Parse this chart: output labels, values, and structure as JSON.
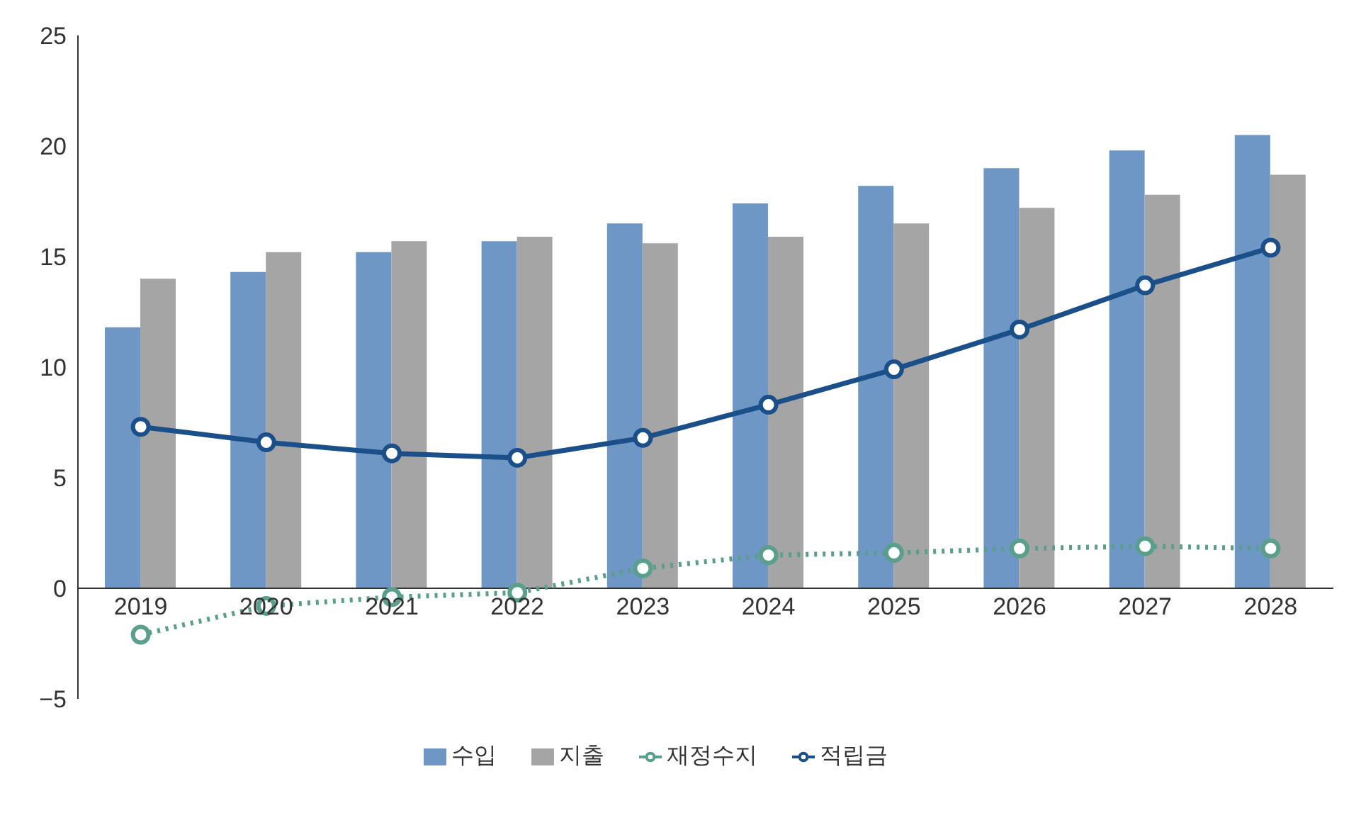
{
  "chart_data": {
    "type": "bar",
    "categories": [
      "2019",
      "2020",
      "2021",
      "2022",
      "2023",
      "2024",
      "2025",
      "2026",
      "2027",
      "2028"
    ],
    "series": [
      {
        "name": "수입",
        "color": "#6f97c6",
        "values": [
          11.8,
          14.3,
          15.2,
          15.7,
          16.5,
          17.4,
          18.2,
          19.0,
          19.8,
          20.5
        ]
      },
      {
        "name": "지출",
        "color": "#a5a5a5",
        "values": [
          14.0,
          15.2,
          15.7,
          15.9,
          15.6,
          15.9,
          16.5,
          17.2,
          17.8,
          18.7
        ]
      },
      {
        "name": "재정수지",
        "type": "line",
        "color": "#5a9e8c",
        "line_style": "dotted",
        "marker": "circle",
        "values": [
          -2.1,
          -0.8,
          -0.4,
          -0.2,
          0.9,
          1.5,
          1.6,
          1.8,
          1.9,
          1.8
        ]
      },
      {
        "name": "적립금",
        "type": "line",
        "color": "#1b4f8a",
        "line_style": "solid",
        "marker": "circle",
        "values": [
          7.3,
          6.6,
          6.1,
          5.9,
          6.8,
          8.3,
          9.9,
          11.7,
          13.7,
          15.4
        ]
      }
    ],
    "ylim": [
      -5,
      25
    ],
    "yticks": [
      -5,
      0,
      5,
      10,
      15,
      20,
      25
    ],
    "legend": "bottom"
  }
}
